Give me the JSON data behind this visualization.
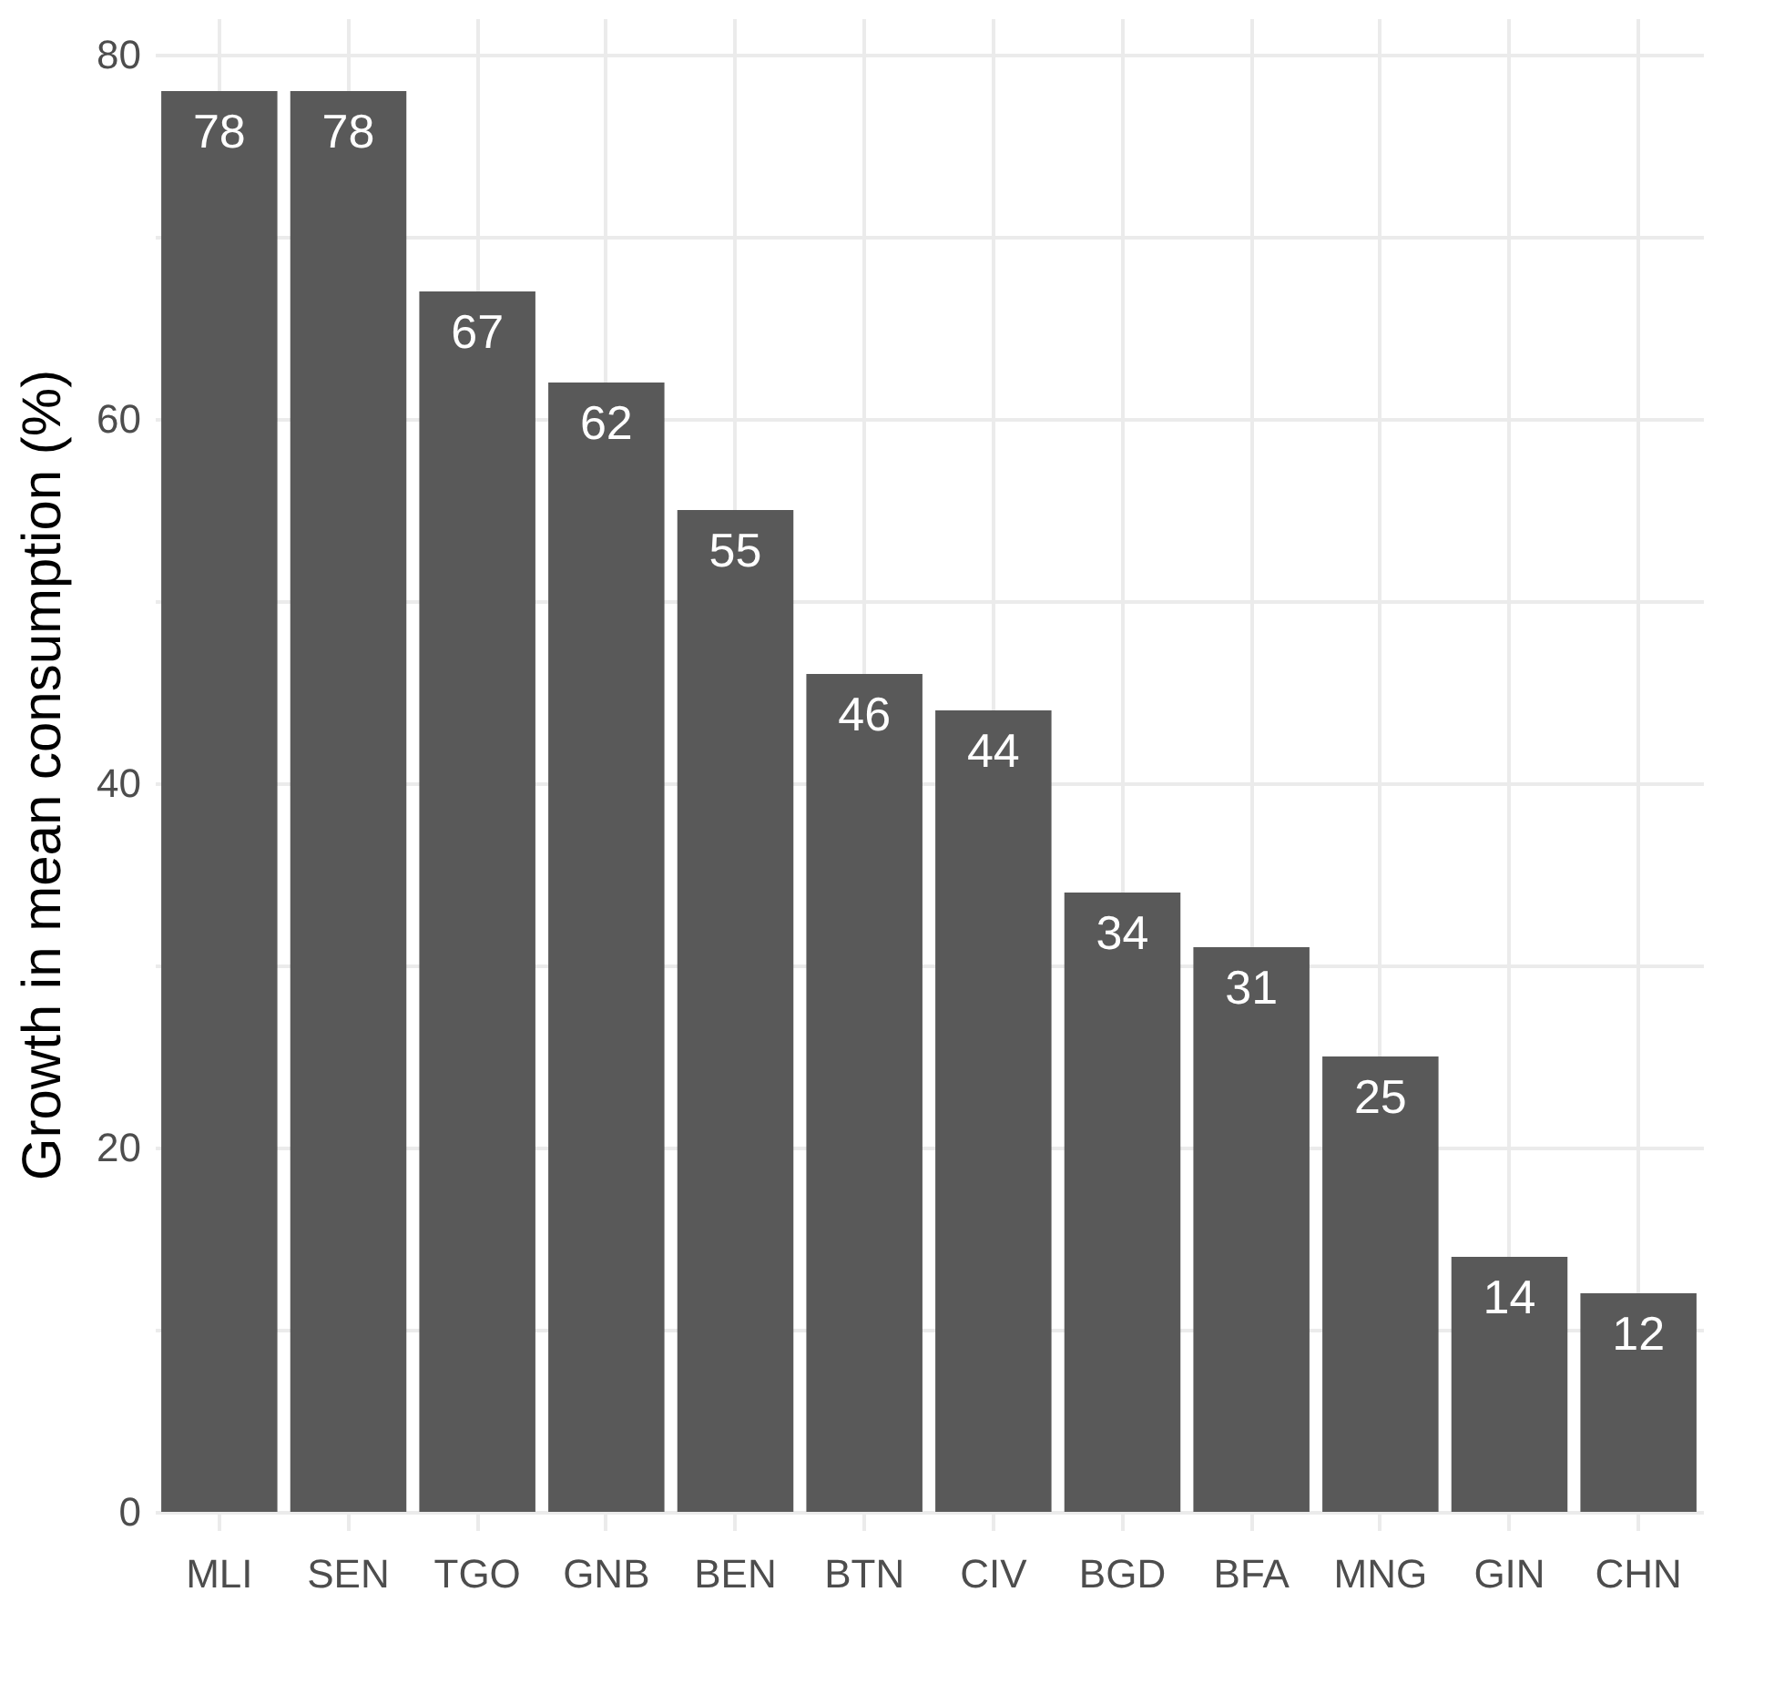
{
  "chart_data": {
    "type": "bar",
    "ylabel": "Growth in mean consumption (%)",
    "categories": [
      "MLI",
      "SEN",
      "TGO",
      "GNB",
      "BEN",
      "BTN",
      "CIV",
      "BGD",
      "BFA",
      "MNG",
      "GIN",
      "CHN"
    ],
    "values": [
      78,
      78,
      67,
      62,
      55,
      46,
      44,
      34,
      31,
      25,
      14,
      12
    ],
    "color": "#595959",
    "data_labels": true,
    "grid": true,
    "ylim": [
      -1,
      82
    ],
    "yticks": [
      0,
      {
        "value": 10,
        "label": null
      },
      20,
      {
        "value": 30,
        "label": null
      },
      40,
      {
        "value": 50,
        "label": null
      },
      60,
      {
        "value": 70,
        "label": null
      },
      80
    ]
  }
}
